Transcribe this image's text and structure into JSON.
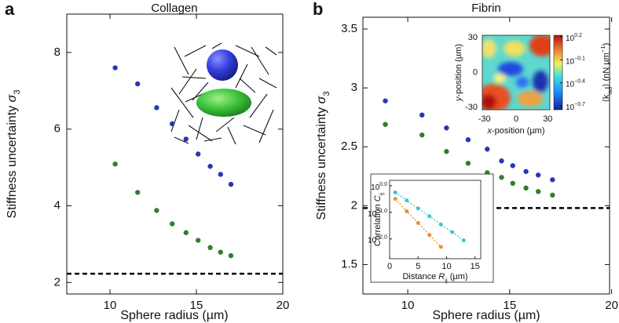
{
  "chart_data": [
    {
      "type": "scatter",
      "panel_label": "a",
      "title": "Collagen",
      "x_label": "Sphere radius (µm)",
      "y_label": "Stiffness uncertainty ",
      "y_label_symbol": "σ",
      "y_label_subscript": "3",
      "xlim": [
        7.5,
        20
      ],
      "ylim": [
        1.7,
        9
      ],
      "xticks": [
        10,
        15,
        20
      ],
      "yticks": [
        2,
        4,
        6,
        8
      ],
      "x": [
        10.3,
        11.6,
        12.7,
        13.6,
        14.4,
        15.1,
        15.8,
        16.4,
        17.0
      ],
      "series": [
        {
          "color": "#2a35b8",
          "values": [
            7.6,
            7.18,
            6.56,
            6.14,
            5.74,
            5.35,
            5.03,
            4.82,
            4.56
          ]
        },
        {
          "color": "#2f7f2f",
          "values": [
            5.09,
            4.35,
            3.88,
            3.53,
            3.3,
            3.1,
            2.91,
            2.79,
            2.7
          ]
        }
      ],
      "reference_line": {
        "y": 2.23,
        "color": "#000000",
        "style": "dashed"
      }
    },
    {
      "type": "scatter",
      "panel_label": "b",
      "title": "Fibrin",
      "x_label": "Sphere radius (µm)",
      "y_label": "Stiffness uncertainty ",
      "y_label_symbol": "σ",
      "y_label_subscript": "3",
      "xlim": [
        7.8,
        19.9
      ],
      "ylim": [
        1.25,
        3.6
      ],
      "xticks": [
        10,
        15,
        20
      ],
      "yticks": [
        1.5,
        2,
        2.5,
        3,
        3.5
      ],
      "x": [
        8.9,
        10.7,
        11.9,
        12.96,
        13.9,
        14.6,
        15.15,
        15.8,
        16.4,
        17.1
      ],
      "series": [
        {
          "color": "#2a35b8",
          "values": [
            2.89,
            2.77,
            2.66,
            2.56,
            2.48,
            2.38,
            2.34,
            2.29,
            2.26,
            2.22
          ]
        },
        {
          "color": "#2f7f2f",
          "values": [
            2.69,
            2.6,
            2.46,
            2.36,
            2.28,
            2.24,
            2.19,
            2.15,
            2.12,
            2.09
          ]
        }
      ],
      "reference_line": {
        "y": 1.98,
        "color": "#000000",
        "style": "dashed"
      }
    },
    {
      "type": "heatmap",
      "x_label_pre": "x",
      "x_label": "-position (µm)",
      "y_label_pre": "y",
      "y_label": "-position (µm)",
      "xlim": [
        -32,
        32
      ],
      "ylim": [
        -32,
        32
      ],
      "xticks": [
        -30,
        0,
        30
      ],
      "yticks": [
        -30,
        0,
        30
      ],
      "colorbar_label": {
        "pre": "⟨k",
        "sub": "iso",
        "mid": "⟩ (nN µm",
        "sup": "−1",
        "post": ")"
      },
      "clim": [
        -0.75,
        0.22
      ],
      "colorbar_ticks": [
        {
          "value": 0.2,
          "label": "10",
          "exponent": "0.2"
        },
        {
          "value": -0.1,
          "label": "10",
          "exponent": "−0.1"
        },
        {
          "value": -0.4,
          "label": "10",
          "exponent": "−0.4"
        },
        {
          "value": -0.7,
          "label": "10",
          "exponent": "−0.7"
        }
      ]
    },
    {
      "type": "log-scatter",
      "x_label": "Distance ",
      "x_label_symbol": "R",
      "x_label_subscript": "ij",
      "x_label_unit": " (µm)",
      "y_label": "Correlation ",
      "y_label_symbol": "C",
      "y_label_subscript": "ij",
      "xlim": [
        0,
        16
      ],
      "ylim": [
        0.0018,
        1.6
      ],
      "log_y": true,
      "xticks": [
        0,
        5,
        10,
        15
      ],
      "yticks": [
        {
          "value": 1,
          "label": "10",
          "exponent": "0.0"
        },
        {
          "value": 0.1,
          "label": "10",
          "exponent": "−1.0"
        },
        {
          "value": 0.01,
          "label": "10",
          "exponent": "−2.0"
        }
      ],
      "series": [
        {
          "color": "#3cc4d4",
          "x": [
            1,
            3,
            5,
            7,
            9,
            11,
            13
          ],
          "values": [
            0.56,
            0.28,
            0.14,
            0.071,
            0.035,
            0.018,
            0.0089
          ]
        },
        {
          "color": "#e39230",
          "x": [
            1,
            3,
            5,
            7,
            9
          ],
          "values": [
            0.32,
            0.11,
            0.04,
            0.014,
            0.005
          ]
        }
      ]
    }
  ]
}
